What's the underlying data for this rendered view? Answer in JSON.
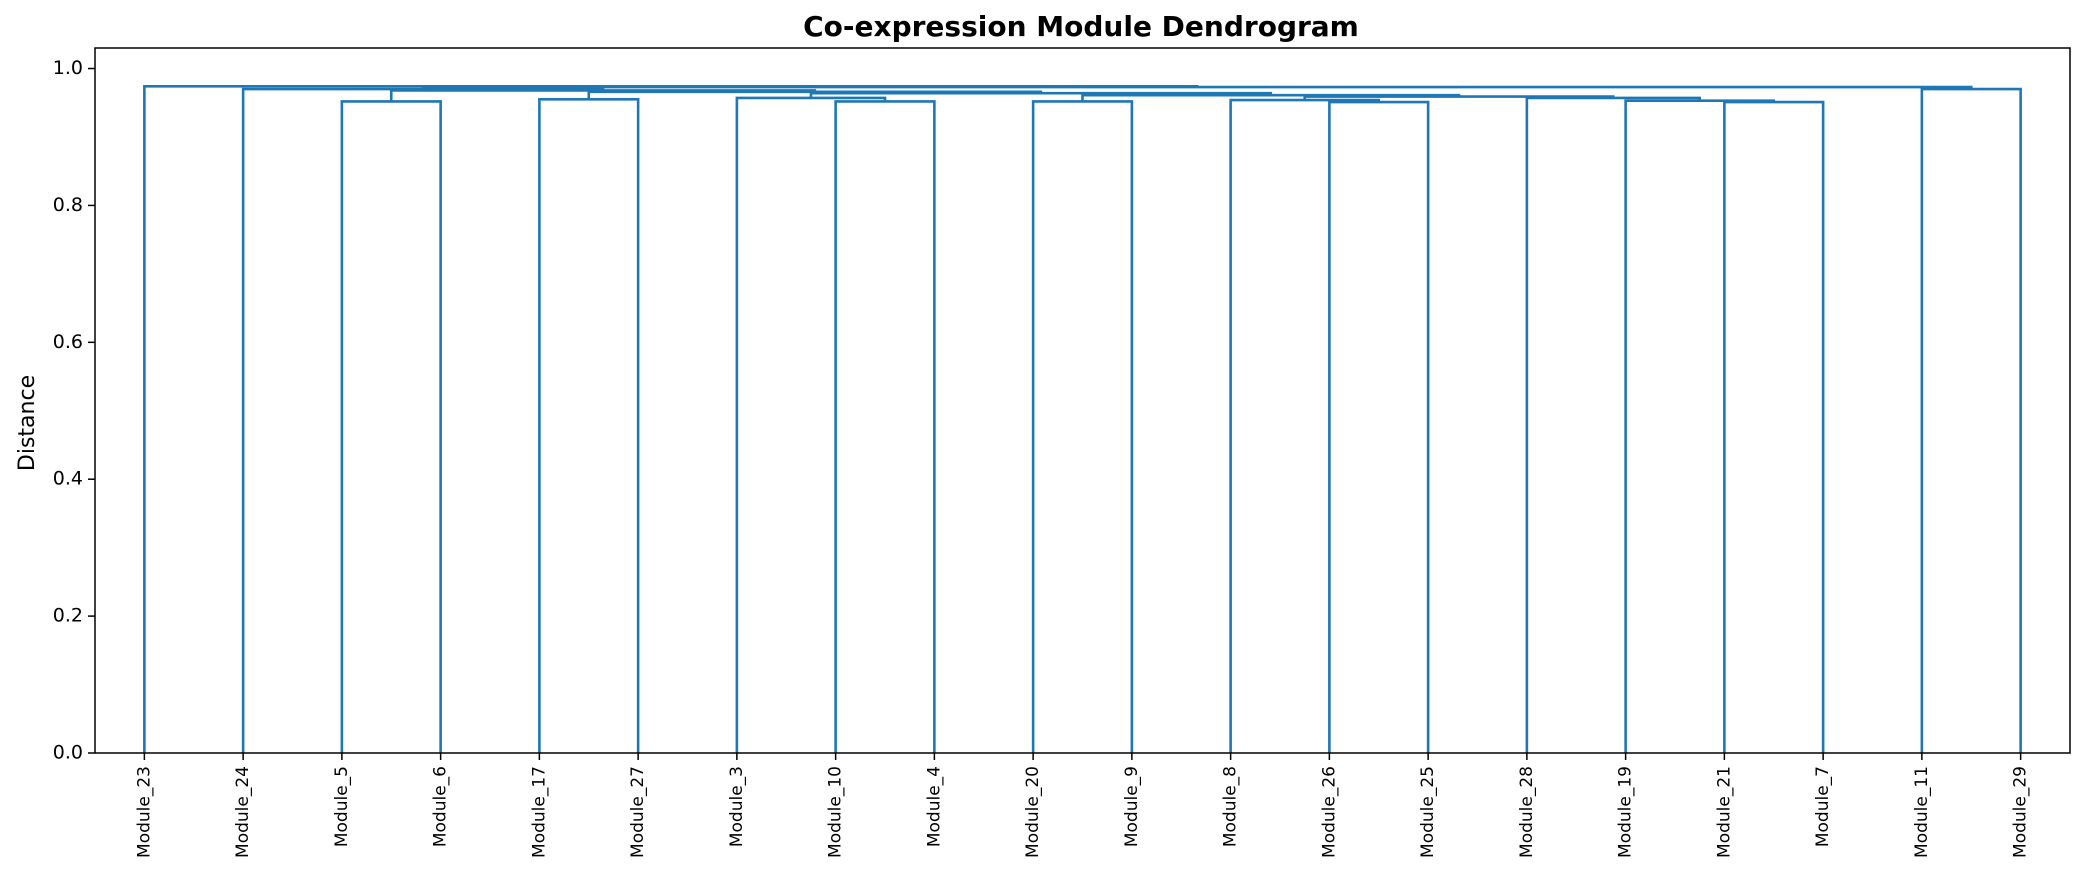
{
  "chart_data": {
    "type": "dendrogram",
    "title": "Co-expression Module Dendrogram",
    "xlabel": "",
    "ylabel": "Distance",
    "ylim": [
      0,
      1.03
    ],
    "yticks": [
      "0.0",
      "0.2",
      "0.4",
      "0.6",
      "0.8",
      "1.0"
    ],
    "grid": false,
    "link_color": "#1f77b4",
    "leaves": [
      "Module_23",
      "Module_24",
      "Module_5",
      "Module_6",
      "Module_17",
      "Module_27",
      "Module_3",
      "Module_10",
      "Module_4",
      "Module_20",
      "Module_9",
      "Module_8",
      "Module_26",
      "Module_25",
      "Module_28",
      "Module_19",
      "Module_21",
      "Module_7",
      "Module_11",
      "Module_29"
    ],
    "merges": [
      {
        "left": "Module_5",
        "right": "Module_6",
        "height": 0.952
      },
      {
        "left": "Module_17",
        "right": "Module_27",
        "height": 0.955
      },
      {
        "left": "Module_10",
        "right": "Module_4",
        "height": 0.952
      },
      {
        "left": "Module_3",
        "right": "Module_10+Module_4",
        "height": 0.957
      },
      {
        "left": "Module_20",
        "right": "Module_9",
        "height": 0.952
      },
      {
        "left": "Module_26",
        "right": "Module_25",
        "height": 0.951
      },
      {
        "left": "Module_8",
        "right": "Module_26+Module_25",
        "height": 0.954
      },
      {
        "left": "Module_21",
        "right": "Module_7",
        "height": 0.951
      },
      {
        "left": "Module_19",
        "right": "Module_21+Module_7",
        "height": 0.953
      },
      {
        "left": "Module_28",
        "right": "Module_19+Module_21+Module_7",
        "height": 0.957
      },
      {
        "left": "Module_8+Module_26+Module_25",
        "right": "Module_28+Module_19+Module_21+Module_7",
        "height": 0.959
      },
      {
        "left": "Module_20+Module_9",
        "right": "Module_8..Module_7",
        "height": 0.961
      },
      {
        "left": "Module_3+Module_10+Module_4",
        "right": "Module_20..Module_7",
        "height": 0.964
      },
      {
        "left": "Module_17+Module_27",
        "right": "Module_3..Module_7",
        "height": 0.966
      },
      {
        "left": "Module_5+Module_6",
        "right": "Module_17..Module_7",
        "height": 0.968
      },
      {
        "left": "Module_24",
        "right": "Module_5..Module_7",
        "height": 0.97
      },
      {
        "left": "Module_11",
        "right": "Module_29",
        "height": 0.97
      },
      {
        "left": "Module_24..Module_7",
        "right": "Module_11+Module_29",
        "height": 0.973
      },
      {
        "left": "Module_23",
        "right": "Module_24..Module_29",
        "height": 0.974
      }
    ]
  }
}
